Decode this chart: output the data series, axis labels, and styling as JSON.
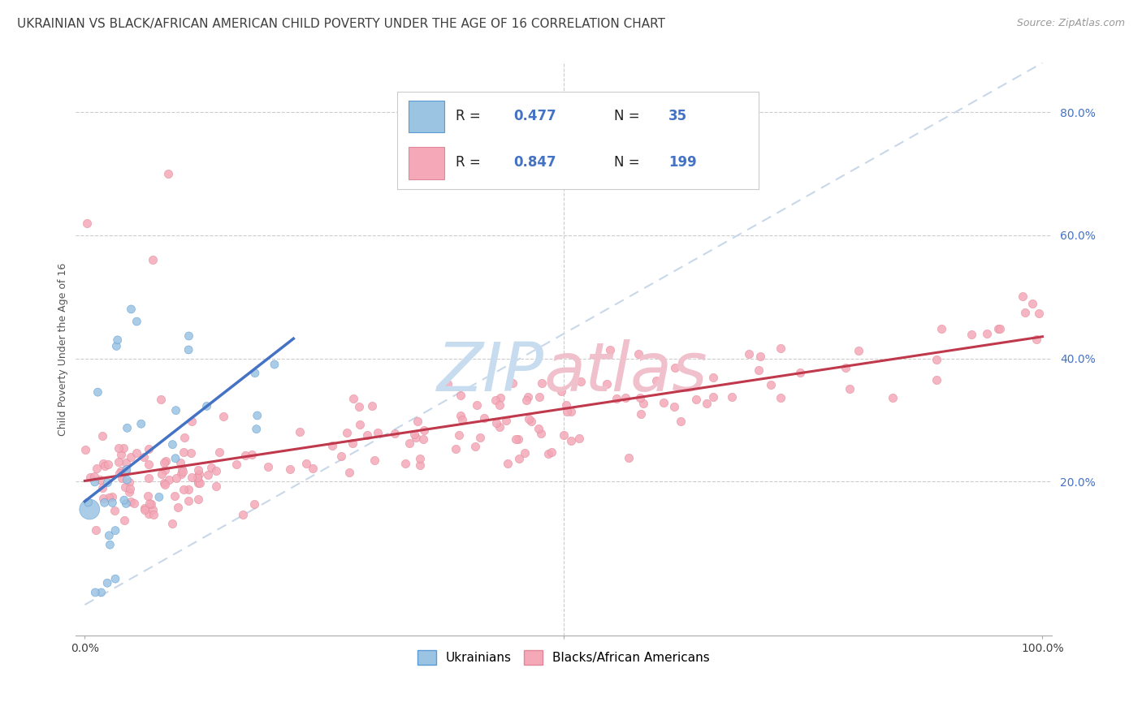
{
  "title": "UKRAINIAN VS BLACK/AFRICAN AMERICAN CHILD POVERTY UNDER THE AGE OF 16 CORRELATION CHART",
  "source": "Source: ZipAtlas.com",
  "ylabel": "Child Poverty Under the Age of 16",
  "legend_R1": "0.477",
  "legend_N1": "35",
  "legend_R2": "0.847",
  "legend_N2": "199",
  "color_ukrainian": "#9BC4E2",
  "color_black": "#F4A8B8",
  "color_regline_ukrainian": "#4472C4",
  "color_regline_black": "#C0384B",
  "color_diagonal": "#C8D8E8",
  "background_color": "#FFFFFF",
  "title_color": "#404040",
  "source_color": "#999999",
  "axis_label_color": "#555555",
  "tick_color": "#4472C4",
  "watermark_zip_color": "#C8DCF0",
  "watermark_atlas_color": "#F0C0CC",
  "title_fontsize": 11,
  "source_fontsize": 9,
  "axis_label_fontsize": 9,
  "tick_fontsize": 10,
  "legend_fontsize": 12,
  "watermark_fontsize": 60
}
